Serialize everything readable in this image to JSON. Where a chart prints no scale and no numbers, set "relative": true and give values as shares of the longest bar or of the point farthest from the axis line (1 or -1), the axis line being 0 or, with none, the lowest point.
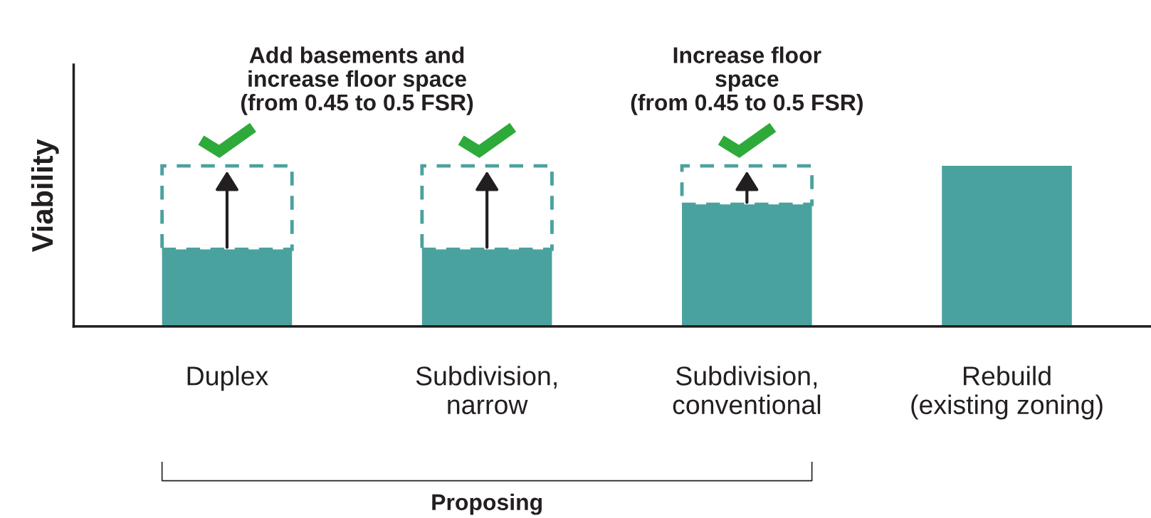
{
  "chart_data": {
    "type": "bar",
    "relative": true,
    "stacked": true,
    "ylabel": "Viability",
    "categories": [
      "Duplex",
      "Subdivision,\nnarrow",
      "Subdivision,\nconventional",
      "Rebuild\n(existing zoning)"
    ],
    "series": [
      {
        "color": "#4aa29e",
        "values": [
          0.48,
          0.48,
          0.76,
          1
        ]
      },
      {
        "color": "#4aa29e",
        "line_style": "dashed",
        "values": [
          0.52,
          0.52,
          0.24,
          null
        ]
      }
    ],
    "annotations": [
      "Add basements and\nincrease floor space\n(from 0.45 to 0.5 FSR)",
      "Increase floor\nspace\n(from 0.45 to 0.5 FSR)",
      "Proposing"
    ],
    "grid": false,
    "legend": false
  }
}
